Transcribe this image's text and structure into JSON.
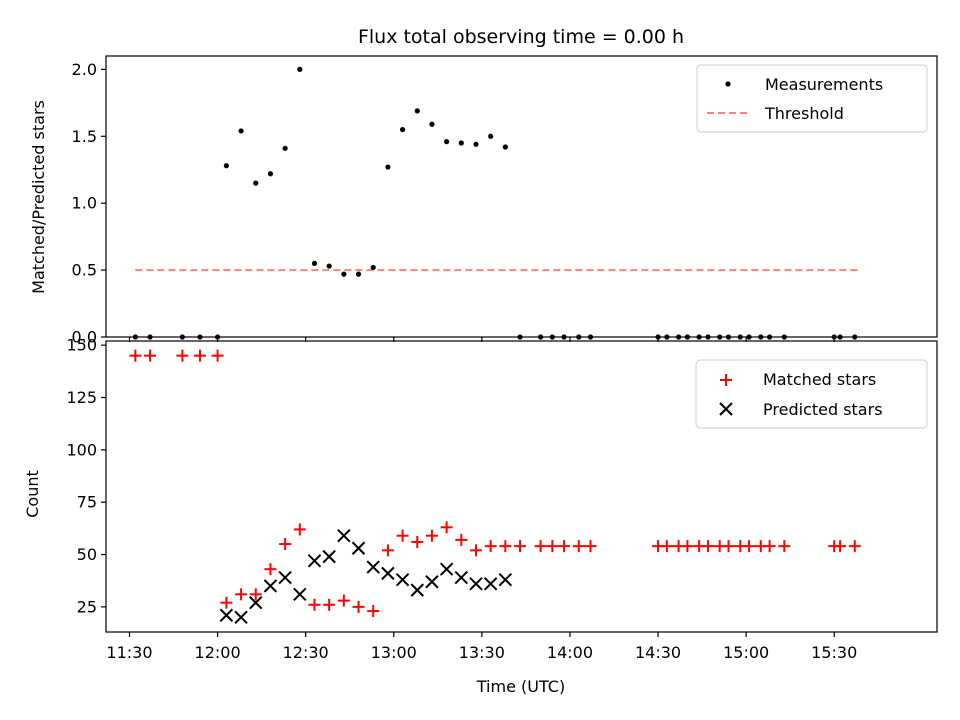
{
  "chart_data": [
    {
      "type": "scatter",
      "title": "Flux total observing time = 0.00 h",
      "xlabel": "",
      "ylabel": "Matched/Predicted stars",
      "ylim": [
        0.0,
        2.1
      ],
      "xlim": [
        "11:22",
        "16:05"
      ],
      "yticks": [
        "0.0",
        "0.5",
        "1.0",
        "1.5",
        "2.0"
      ],
      "grid": false,
      "legend": "top-right",
      "series": [
        {
          "name": "Measurements",
          "kind": "dot",
          "color": "#000000",
          "points": [
            [
              "11:32",
              0
            ],
            [
              "11:37",
              0
            ],
            [
              "11:48",
              0
            ],
            [
              "11:54",
              0
            ],
            [
              "12:00",
              0
            ],
            [
              "12:03",
              1.28
            ],
            [
              "12:08",
              1.54
            ],
            [
              "12:13",
              1.15
            ],
            [
              "12:18",
              1.22
            ],
            [
              "12:23",
              1.41
            ],
            [
              "12:28",
              2.0
            ],
            [
              "12:33",
              0.55
            ],
            [
              "12:38",
              0.53
            ],
            [
              "12:43",
              0.47
            ],
            [
              "12:48",
              0.47
            ],
            [
              "12:53",
              0.52
            ],
            [
              "12:58",
              1.27
            ],
            [
              "13:03",
              1.55
            ],
            [
              "13:08",
              1.69
            ],
            [
              "13:13",
              1.59
            ],
            [
              "13:18",
              1.46
            ],
            [
              "13:23",
              1.45
            ],
            [
              "13:28",
              1.44
            ],
            [
              "13:33",
              1.5
            ],
            [
              "13:38",
              1.42
            ],
            [
              "13:43",
              0
            ],
            [
              "13:50",
              0
            ],
            [
              "13:54",
              0
            ],
            [
              "13:58",
              0
            ],
            [
              "14:03",
              0
            ],
            [
              "14:07",
              0
            ],
            [
              "14:30",
              0
            ],
            [
              "14:33",
              0
            ],
            [
              "14:37",
              0
            ],
            [
              "14:40",
              0
            ],
            [
              "14:44",
              0
            ],
            [
              "14:47",
              0
            ],
            [
              "14:51",
              0
            ],
            [
              "14:54",
              0
            ],
            [
              "14:58",
              0
            ],
            [
              "15:01",
              0
            ],
            [
              "15:05",
              0
            ],
            [
              "15:08",
              0
            ],
            [
              "15:13",
              0
            ],
            [
              "15:30",
              0
            ],
            [
              "15:32",
              0
            ],
            [
              "15:37",
              0
            ]
          ]
        },
        {
          "name": "Threshold",
          "kind": "dashed-line",
          "color": "#ff7f7f",
          "points": [
            [
              "11:32",
              0.5
            ],
            [
              "15:38",
              0.5
            ]
          ]
        }
      ]
    },
    {
      "type": "scatter",
      "title": "",
      "xlabel": "Time (UTC)",
      "ylabel": "Count",
      "ylim": [
        13,
        152
      ],
      "xlim": [
        "11:22",
        "16:05"
      ],
      "yticks": [
        25,
        50,
        75,
        100,
        125,
        150
      ],
      "xticks": [
        "11:30",
        "12:00",
        "12:30",
        "13:00",
        "13:30",
        "14:00",
        "14:30",
        "15:00",
        "15:30"
      ],
      "grid": false,
      "legend": "top-right",
      "series": [
        {
          "name": "Matched stars",
          "kind": "plus",
          "color": "#ff0000",
          "points": [
            [
              "11:32",
              145
            ],
            [
              "11:37",
              145
            ],
            [
              "11:48",
              145
            ],
            [
              "11:54",
              145
            ],
            [
              "12:00",
              145
            ],
            [
              "12:03",
              27
            ],
            [
              "12:08",
              31
            ],
            [
              "12:13",
              31
            ],
            [
              "12:18",
              43
            ],
            [
              "12:23",
              55
            ],
            [
              "12:28",
              62
            ],
            [
              "12:33",
              26
            ],
            [
              "12:38",
              26
            ],
            [
              "12:43",
              28
            ],
            [
              "12:48",
              25
            ],
            [
              "12:53",
              23
            ],
            [
              "12:58",
              52
            ],
            [
              "13:03",
              59
            ],
            [
              "13:08",
              56
            ],
            [
              "13:13",
              59
            ],
            [
              "13:18",
              63
            ],
            [
              "13:23",
              57
            ],
            [
              "13:28",
              52
            ],
            [
              "13:33",
              54
            ],
            [
              "13:38",
              54
            ],
            [
              "13:43",
              54
            ],
            [
              "13:50",
              54
            ],
            [
              "13:54",
              54
            ],
            [
              "13:58",
              54
            ],
            [
              "14:03",
              54
            ],
            [
              "14:07",
              54
            ],
            [
              "14:30",
              54
            ],
            [
              "14:33",
              54
            ],
            [
              "14:37",
              54
            ],
            [
              "14:40",
              54
            ],
            [
              "14:44",
              54
            ],
            [
              "14:47",
              54
            ],
            [
              "14:51",
              54
            ],
            [
              "14:54",
              54
            ],
            [
              "14:58",
              54
            ],
            [
              "15:01",
              54
            ],
            [
              "15:05",
              54
            ],
            [
              "15:08",
              54
            ],
            [
              "15:13",
              54
            ],
            [
              "15:30",
              54
            ],
            [
              "15:32",
              54
            ],
            [
              "15:37",
              54
            ]
          ]
        },
        {
          "name": "Predicted stars",
          "kind": "x",
          "color": "#000000",
          "points": [
            [
              "12:03",
              21
            ],
            [
              "12:08",
              20
            ],
            [
              "12:13",
              27
            ],
            [
              "12:18",
              35
            ],
            [
              "12:23",
              39
            ],
            [
              "12:28",
              31
            ],
            [
              "12:33",
              47
            ],
            [
              "12:38",
              49
            ],
            [
              "12:43",
              59
            ],
            [
              "12:48",
              53
            ],
            [
              "12:53",
              44
            ],
            [
              "12:58",
              41
            ],
            [
              "13:03",
              38
            ],
            [
              "13:08",
              33
            ],
            [
              "13:13",
              37
            ],
            [
              "13:18",
              43
            ],
            [
              "13:23",
              39
            ],
            [
              "13:28",
              36
            ],
            [
              "13:33",
              36
            ],
            [
              "13:38",
              38
            ]
          ]
        }
      ]
    }
  ]
}
